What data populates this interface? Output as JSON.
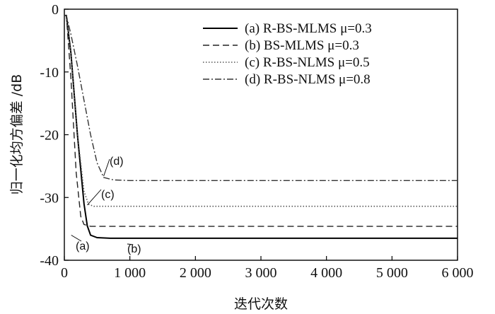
{
  "chart_data": {
    "type": "line",
    "xlabel": "迭代次数",
    "ylabel": "归一化均方偏差 /dB",
    "xlim": [
      0,
      6000
    ],
    "ylim": [
      -40,
      0
    ],
    "xticks": [
      0,
      1000,
      2000,
      3000,
      4000,
      5000,
      6000
    ],
    "xtick_labels": [
      "0",
      "1 000",
      "2 000",
      "3 000",
      "4 000",
      "5 000",
      "6 000"
    ],
    "yticks": [
      0,
      -10,
      -20,
      -30,
      -40
    ],
    "ytick_labels": [
      "0",
      "-10",
      "-20",
      "-30",
      "-40"
    ],
    "grid": false,
    "legend_position": "top-right",
    "series": [
      {
        "name": "(a) R-BS-MLMS  μ=0.3",
        "style": "solid",
        "color": "#000000",
        "annotation": "(a)",
        "x": [
          0,
          30,
          100,
          200,
          300,
          350,
          400,
          500,
          700,
          1000,
          2000,
          3000,
          4000,
          5000,
          6000
        ],
        "y": [
          -1,
          -1,
          -7,
          -20,
          -31,
          -34.5,
          -36,
          -36.4,
          -36.5,
          -36.5,
          -36.5,
          -36.5,
          -36.5,
          -36.5,
          -36.5
        ]
      },
      {
        "name": "(b) BS-MLMS  μ=0.3",
        "style": "dashed",
        "color": "#222222",
        "annotation": "(b)",
        "x": [
          0,
          30,
          100,
          180,
          250,
          300,
          400,
          600,
          1000,
          2000,
          3000,
          4000,
          5000,
          6000
        ],
        "y": [
          -1,
          -1,
          -11,
          -26,
          -33,
          -34.3,
          -34.6,
          -34.6,
          -34.6,
          -34.6,
          -34.6,
          -34.6,
          -34.6,
          -34.6
        ]
      },
      {
        "name": "(c) R-BS-NLMS  μ=0.5",
        "style": "dotted",
        "color": "#555555",
        "annotation": "(c)",
        "x": [
          0,
          30,
          100,
          200,
          300,
          370,
          450,
          600,
          1000,
          2000,
          3000,
          4000,
          5000,
          6000
        ],
        "y": [
          -1,
          -1,
          -7,
          -20,
          -29,
          -31.1,
          -31.4,
          -31.4,
          -31.4,
          -31.4,
          -31.4,
          -31.4,
          -31.4,
          -31.4
        ]
      },
      {
        "name": "(d) R-BS-NLMS  μ=0.8",
        "style": "dashdot",
        "color": "#333333",
        "annotation": "(d)",
        "x": [
          0,
          30,
          100,
          200,
          300,
          400,
          500,
          600,
          750,
          1000,
          2000,
          3000,
          4000,
          5000,
          6000
        ],
        "y": [
          -1,
          -1,
          -4,
          -9,
          -14.5,
          -20,
          -24.5,
          -26.8,
          -27.2,
          -27.3,
          -27.3,
          -27.3,
          -27.3,
          -27.3,
          -27.3
        ]
      }
    ]
  }
}
